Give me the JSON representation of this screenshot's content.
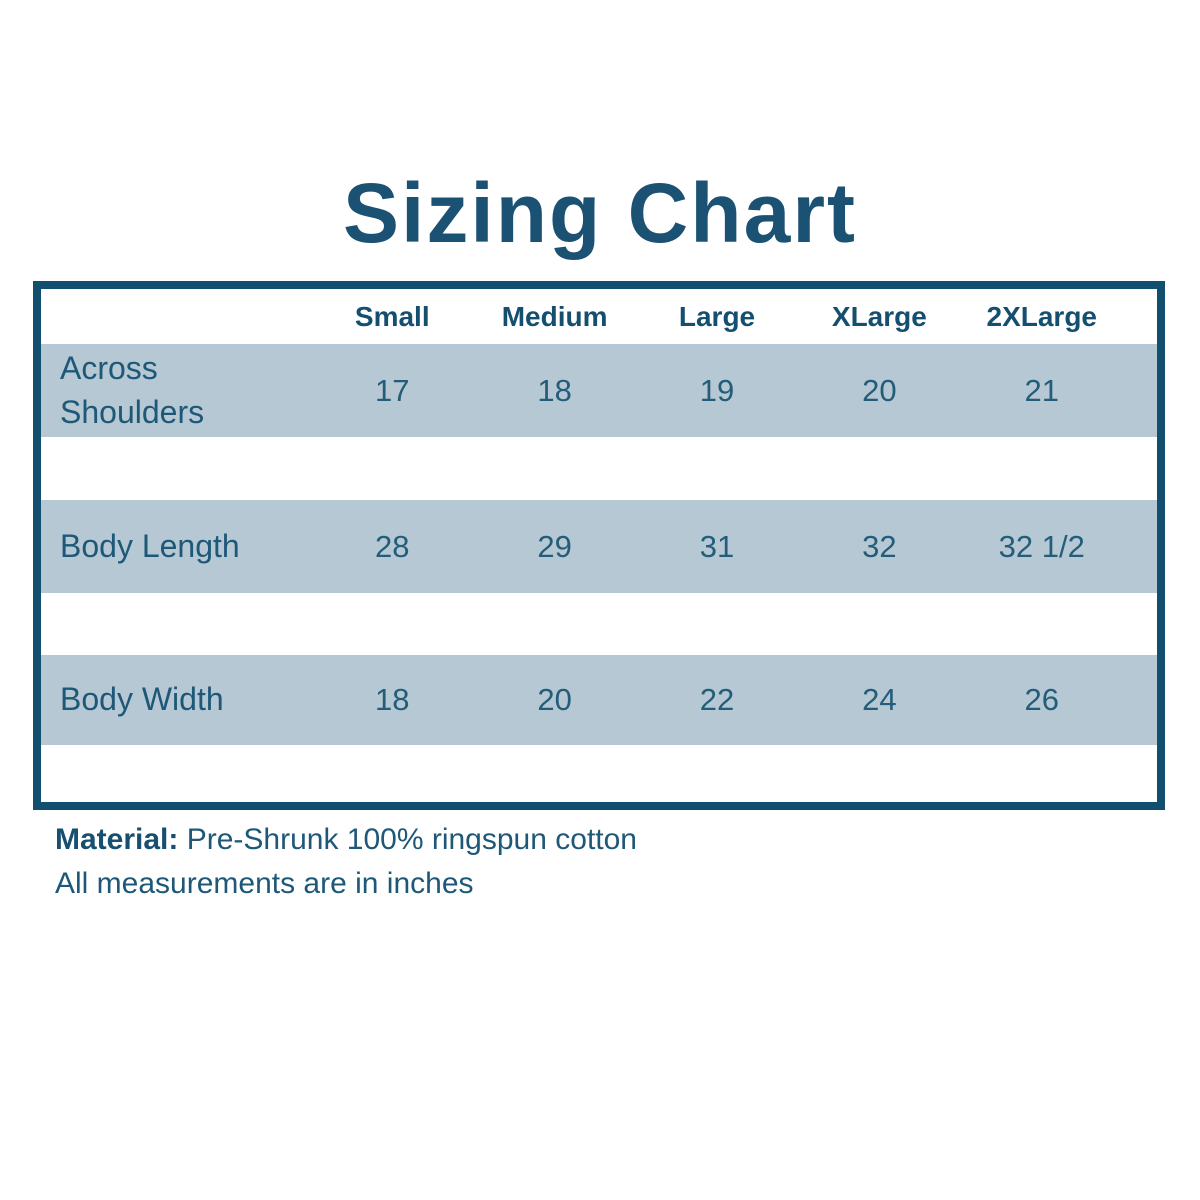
{
  "title": "Sizing Chart",
  "colors": {
    "border_dark_blue": "#124e6e",
    "title_blue": "#1b5173",
    "row_band_blue": "#b5c8d3",
    "text_teal": "#1e5878"
  },
  "table": {
    "columns": [
      "Small",
      "Medium",
      "Large",
      "XLarge",
      "2XLarge"
    ],
    "rows": [
      {
        "label": "Across Shoulders",
        "values": [
          "17",
          "18",
          "19",
          "20",
          "21"
        ]
      },
      {
        "label": "Body Length",
        "values": [
          "28",
          "29",
          "31",
          "32",
          "32 1/2"
        ]
      },
      {
        "label": "Body Width",
        "values": [
          "18",
          "20",
          "22",
          "24",
          "26"
        ]
      }
    ]
  },
  "footer": {
    "material_label": "Material:",
    "material_value": "Pre-Shrunk 100% ringspun cotton",
    "note": "All measurements are in inches"
  },
  "chart_data": {
    "type": "table",
    "title": "Sizing Chart",
    "columns": [
      "Small",
      "Medium",
      "Large",
      "XLarge",
      "2XLarge"
    ],
    "rows": [
      {
        "label": "Across Shoulders",
        "values": [
          17,
          18,
          19,
          20,
          21
        ]
      },
      {
        "label": "Body Length",
        "values": [
          28,
          29,
          31,
          32,
          "32 1/2"
        ]
      },
      {
        "label": "Body Width",
        "values": [
          18,
          20,
          22,
          24,
          26
        ]
      }
    ],
    "notes": [
      "Material: Pre-Shrunk 100% ringspun cotton",
      "All measurements are in inches"
    ],
    "units": "inches"
  }
}
